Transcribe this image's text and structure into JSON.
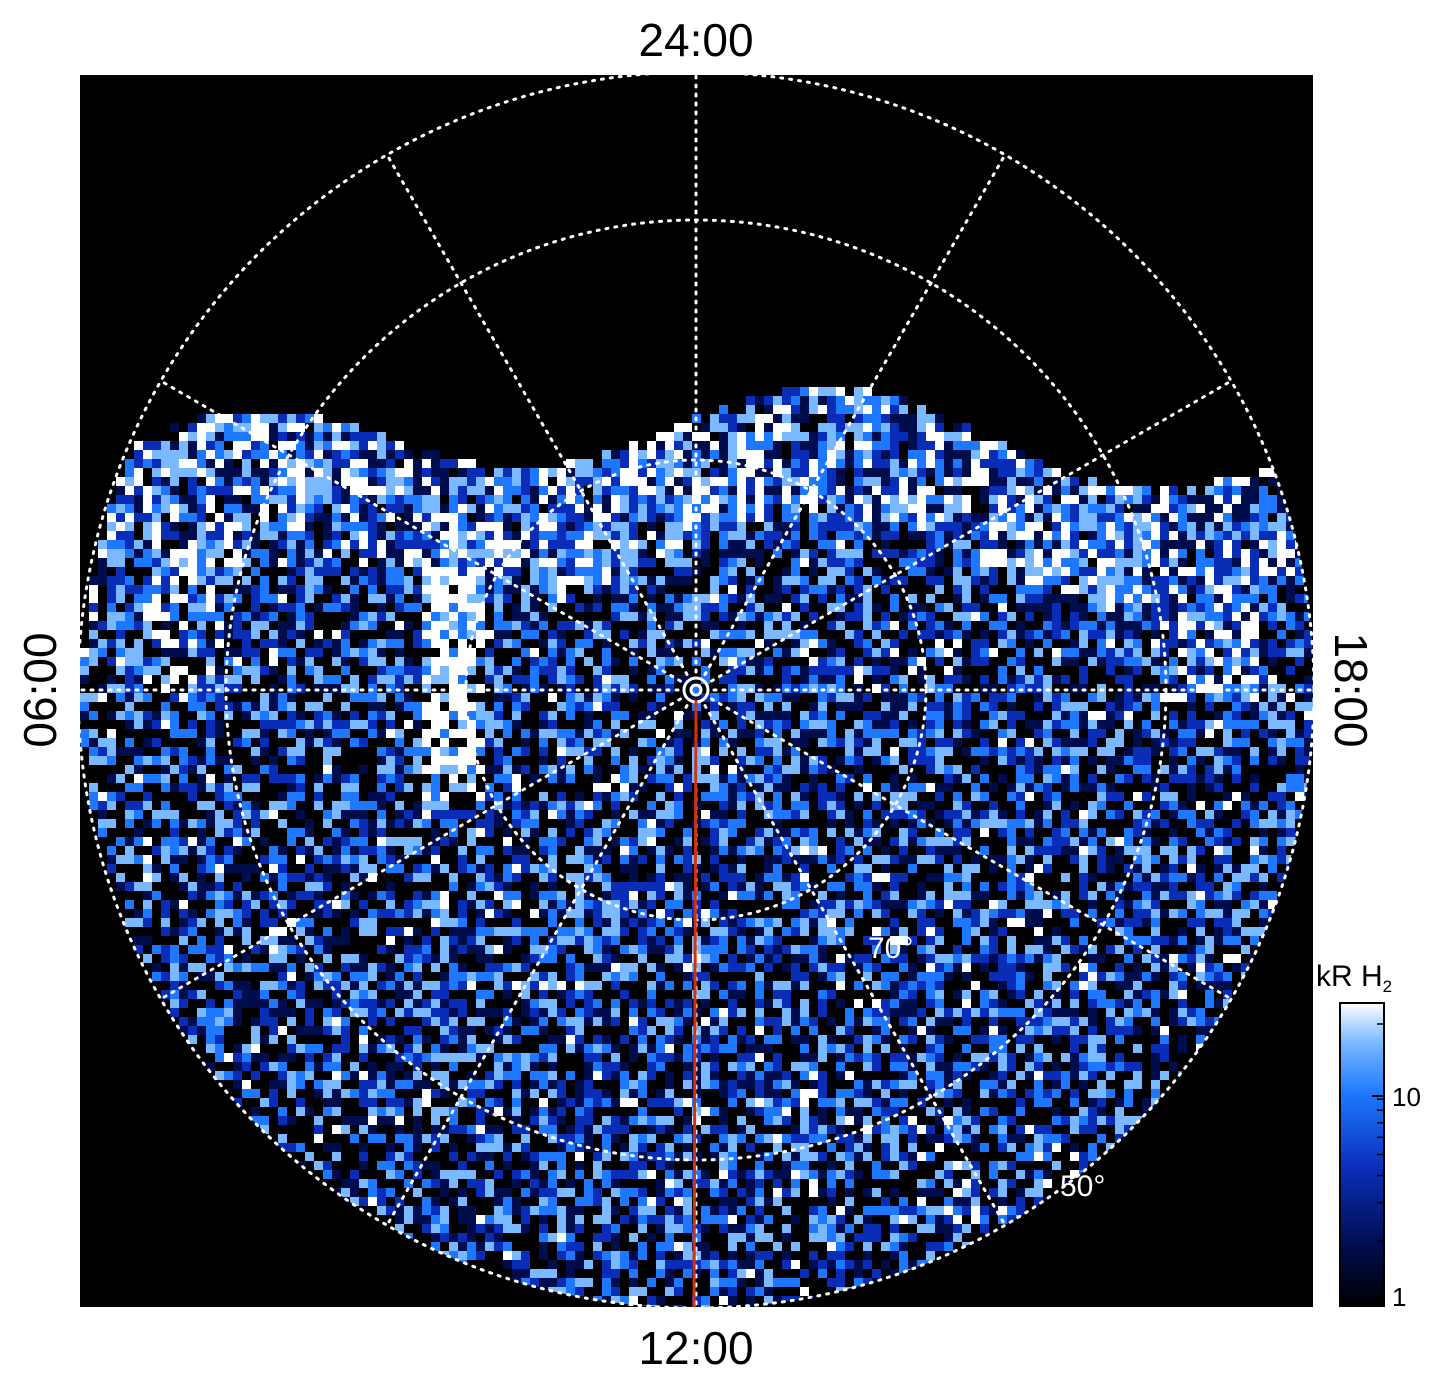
{
  "figure": {
    "local_time_labels": {
      "top": "24:00",
      "bottom": "12:00",
      "left": "06:00",
      "right": "18:00"
    },
    "latitude_labels": {
      "inner": "70°",
      "outer": "50°"
    },
    "colorbar": {
      "title": "kR H",
      "title_subscript": "2",
      "scale": "log",
      "range": [
        1,
        25
      ],
      "tick_labels": [
        "10",
        "1"
      ],
      "tick_values": [
        10,
        1
      ],
      "colors": [
        "#000000",
        "#000d4d",
        "#0a2db8",
        "#1e78ff",
        "#7ab8ff",
        "#ffffff"
      ]
    },
    "colors": {
      "background_inside_plot": "#000000",
      "grid": "#ffffff",
      "meridian_marker": "#cc3311"
    }
  }
}
